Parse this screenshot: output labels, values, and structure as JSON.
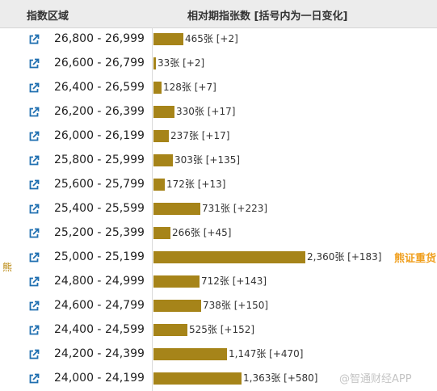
{
  "header": {
    "range_col": "指数区域",
    "ratio_col": "相对期指张数 [括号内为一日变化]"
  },
  "side_label": "熊",
  "badge_text": "熊证重货",
  "watermark": "@智通财经APP",
  "colors": {
    "bar": "#a68419",
    "badge": "#f0a020",
    "icon": "#1f6fb0"
  },
  "icons": {
    "row_link": "external-link-icon"
  },
  "chart_data": {
    "type": "bar",
    "orientation": "horizontal",
    "unit": "张",
    "categories": [
      "26,800 - 26,999",
      "26,600 - 26,799",
      "26,400 - 26,599",
      "26,200 - 26,399",
      "26,000 - 26,199",
      "25,800 - 25,999",
      "25,600 - 25,799",
      "25,400 - 25,599",
      "25,200 - 25,399",
      "25,000 - 25,199",
      "24,800 - 24,999",
      "24,600 - 24,799",
      "24,400 - 24,599",
      "24,200 - 24,399",
      "24,000 - 24,199"
    ],
    "values": [
      465,
      33,
      128,
      330,
      237,
      303,
      172,
      731,
      266,
      2360,
      712,
      738,
      525,
      1147,
      1363
    ],
    "labels": [
      "465张 [+2]",
      "33张 [+2]",
      "128张 [+7]",
      "330张 [+17]",
      "237张 [+17]",
      "303张 [+135]",
      "172张 [+13]",
      "731张 [+223]",
      "266张 [+45]",
      "2,360张 [+183]",
      "712张 [+143]",
      "738张 [+150]",
      "525张 [+152]",
      "1,147张 [+470]",
      "1,363张 [+580]"
    ],
    "changes": [
      2,
      2,
      7,
      17,
      17,
      135,
      13,
      223,
      45,
      183,
      143,
      150,
      152,
      470,
      580
    ],
    "title": "",
    "xlabel": "",
    "ylabel": "",
    "xlim": [
      0,
      2360
    ],
    "grid": false,
    "legend": "none"
  }
}
